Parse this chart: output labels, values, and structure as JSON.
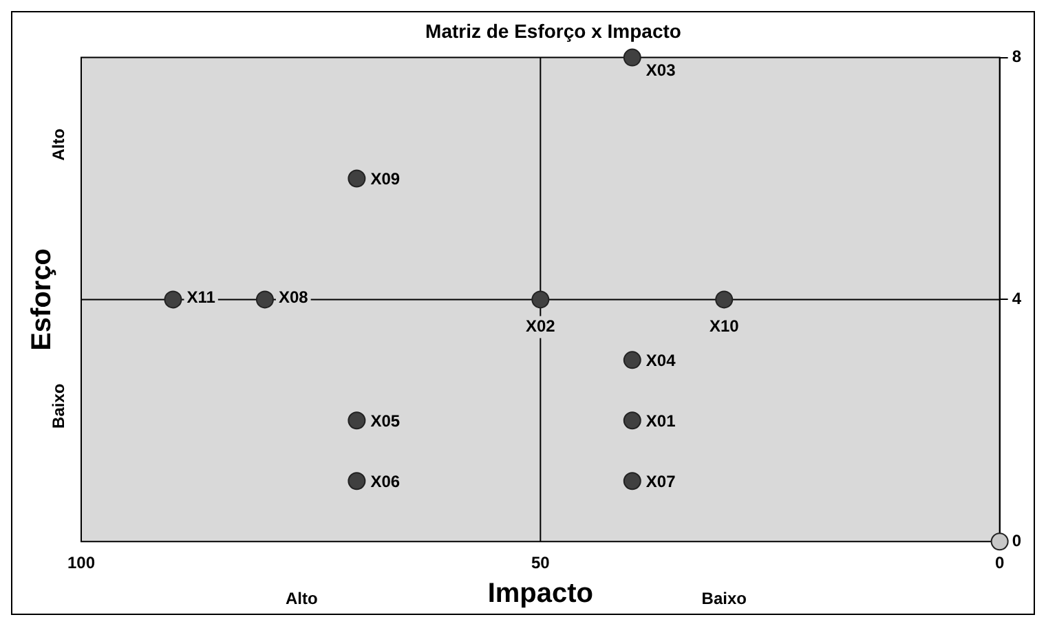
{
  "chart_data": {
    "type": "scatter",
    "title": "Matriz de Esforço x Impacto",
    "xlabel": "Impacto",
    "ylabel": "Esforço",
    "annotations": [
      "Alto",
      "Baixo",
      "Alto",
      "Baixo"
    ],
    "x": [
      40,
      70,
      90,
      80,
      50,
      30,
      40,
      70,
      40,
      70,
      40,
      0
    ],
    "values": [
      8,
      6,
      4,
      4,
      4,
      4,
      3,
      2,
      2,
      1,
      1,
      0
    ],
    "value_labels": [
      "X03",
      "X09",
      "X11",
      "X08",
      "X02",
      "X10",
      "X04",
      "X05",
      "X01",
      "X06",
      "X07",
      null
    ],
    "colors": [
      "#404040",
      "#404040",
      "#404040",
      "#404040",
      "#404040",
      "#404040",
      "#404040",
      "#404040",
      "#404040",
      "#404040",
      "#404040",
      "#c8c8c8"
    ],
    "xlim": [
      100,
      0
    ],
    "xticks": [
      100,
      50,
      0
    ],
    "ylim": [
      0,
      8
    ],
    "yticks": [
      0,
      4,
      8
    ],
    "ref_lines": [
      {
        "axis": "x",
        "value": 50,
        "color": "#000000"
      },
      {
        "axis": "y",
        "value": 4,
        "color": "#000000"
      }
    ],
    "grid": false,
    "legend": false,
    "marker": "circle"
  }
}
